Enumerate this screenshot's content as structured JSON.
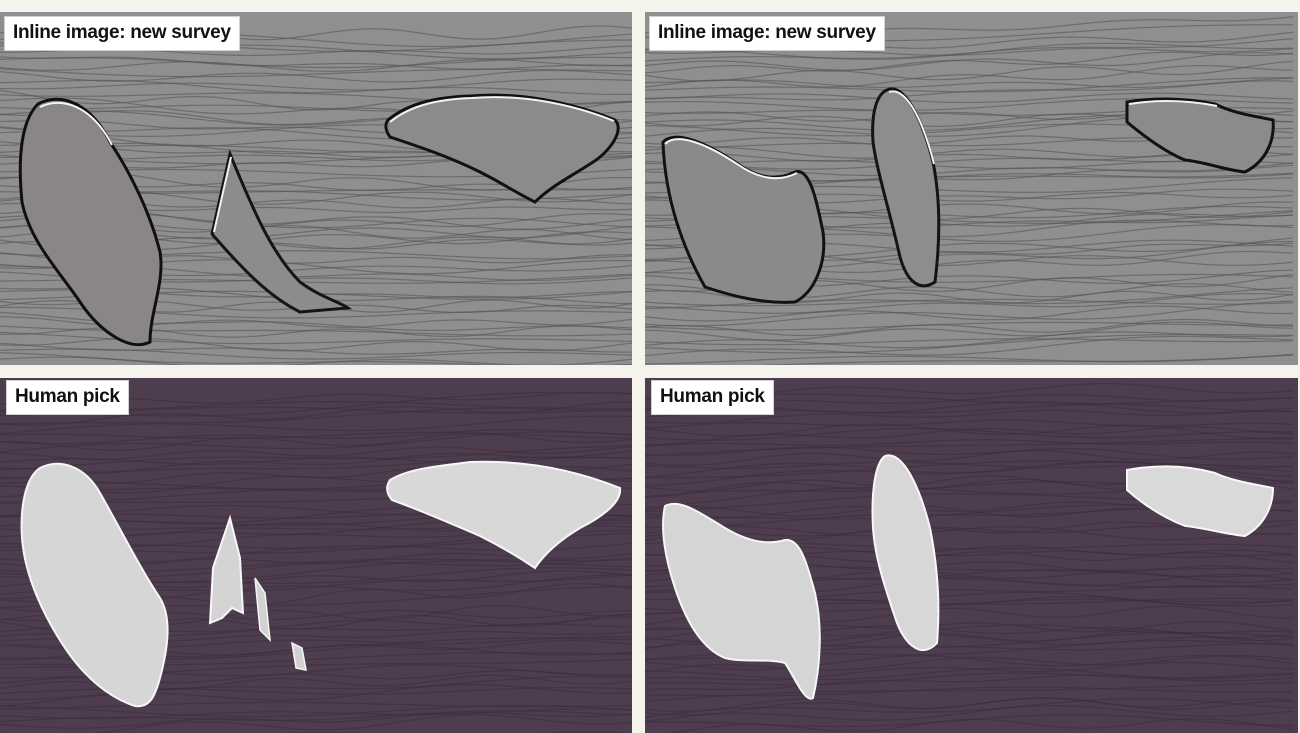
{
  "panels": {
    "top_left": {
      "label": "Inline image: new survey"
    },
    "top_right": {
      "label": "Inline image: new survey"
    },
    "bottom_left": {
      "label": "Human pick"
    },
    "bottom_right": {
      "label": "Human pick"
    }
  },
  "colors": {
    "seismic_gray": "#8d8d8d",
    "mask_background": "#4e3c4f",
    "salt_body": "#d8d8d8"
  }
}
